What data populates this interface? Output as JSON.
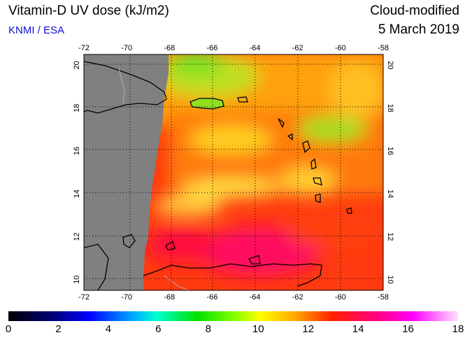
{
  "header": {
    "title": "Vitamin-D UV dose (kJ/m2)",
    "agency": "KNMI / ESA",
    "product": "Cloud-modified",
    "date": "5 March 2019"
  },
  "map": {
    "lon_ticks": [
      "-72",
      "-70",
      "-68",
      "-66",
      "-64",
      "-62",
      "-60",
      "-58"
    ],
    "lat_ticks": [
      "10",
      "12",
      "14",
      "16",
      "18",
      "20"
    ],
    "lon_range": [
      -72,
      -58
    ],
    "lat_range": [
      9.5,
      20.5
    ],
    "no_data_color": "#808080",
    "coastline_color": "#000000",
    "grid": "dotted"
  },
  "colorbar": {
    "labels": [
      "0",
      "2",
      "4",
      "6",
      "8",
      "10",
      "12",
      "14",
      "16",
      "18"
    ],
    "range": [
      0,
      18
    ]
  }
}
